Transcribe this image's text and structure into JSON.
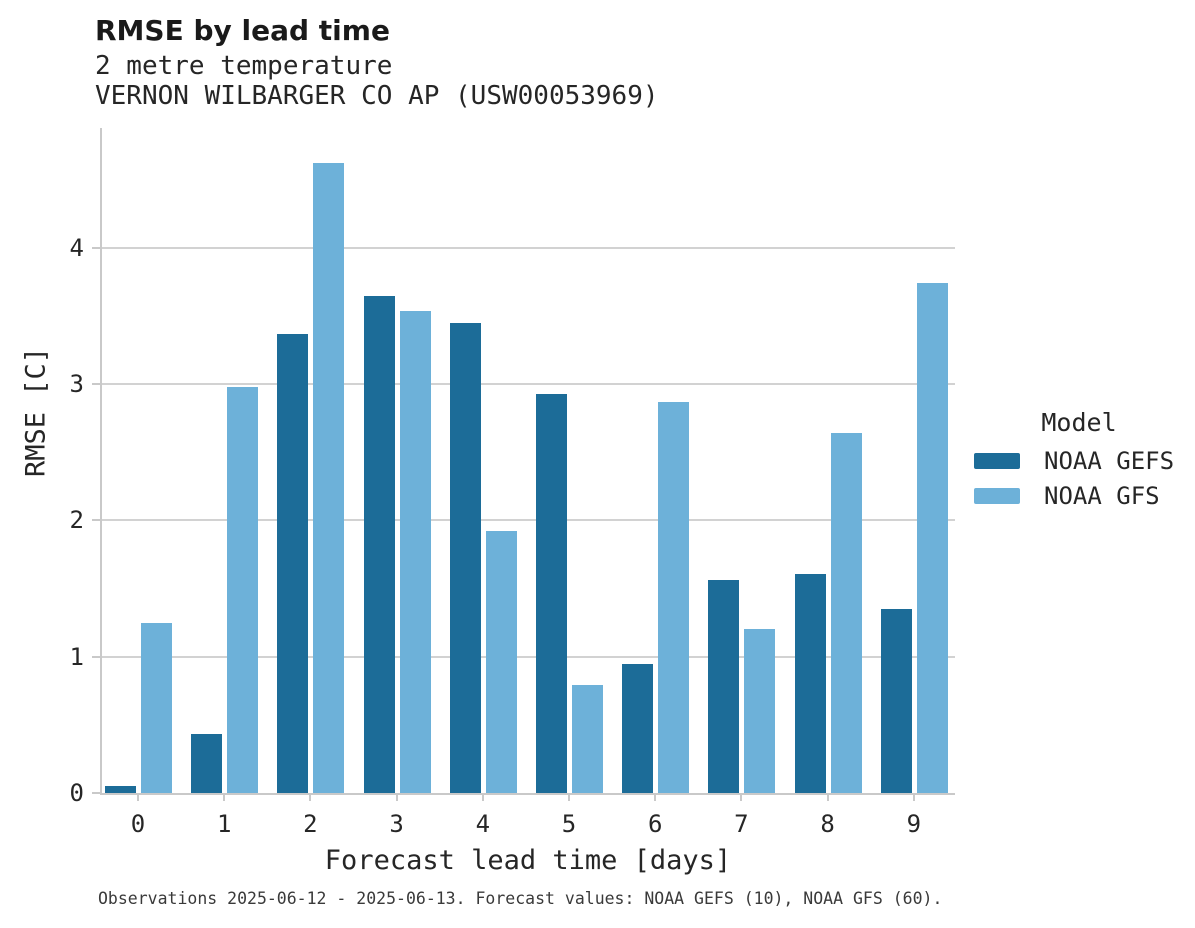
{
  "title": "RMSE by lead time",
  "subtitle": "2 metre temperature",
  "station": "VERNON WILBARGER CO AP (USW00053969)",
  "footer": "Observations 2025-06-12 - 2025-06-13. Forecast values: NOAA GEFS (10), NOAA GFS (60).",
  "legend": {
    "title": "Model",
    "entries": [
      "NOAA GEFS",
      "NOAA GFS"
    ]
  },
  "colors": {
    "gefs": "#1c6c98",
    "gfs": "#6db1d9",
    "grid": "#d2d2d2",
    "spine": "#c9c9c9"
  },
  "chart_data": {
    "type": "bar",
    "title": "RMSE by lead time",
    "subtitle": "2 metre temperature",
    "station": "VERNON WILBARGER CO AP (USW00053969)",
    "xlabel": "Forecast lead time [days]",
    "ylabel": "RMSE [C]",
    "categories": [
      "0",
      "1",
      "2",
      "3",
      "4",
      "5",
      "6",
      "7",
      "8",
      "9"
    ],
    "series": [
      {
        "name": "NOAA GEFS",
        "color": "#1c6c98",
        "values": [
          0.05,
          0.43,
          3.37,
          3.65,
          3.45,
          2.93,
          0.95,
          1.56,
          1.61,
          1.35
        ]
      },
      {
        "name": "NOAA GFS",
        "color": "#6db1d9",
        "values": [
          1.25,
          2.98,
          4.62,
          3.54,
          1.92,
          0.79,
          2.87,
          1.2,
          2.64,
          3.74
        ]
      }
    ],
    "ylim": [
      0,
      4.88
    ],
    "yticks": [
      0,
      1,
      2,
      3,
      4
    ],
    "grid": true,
    "legend_position": "right",
    "note": "Observations 2025-06-12 - 2025-06-13. Forecast values: NOAA GEFS (10), NOAA GFS (60)."
  }
}
